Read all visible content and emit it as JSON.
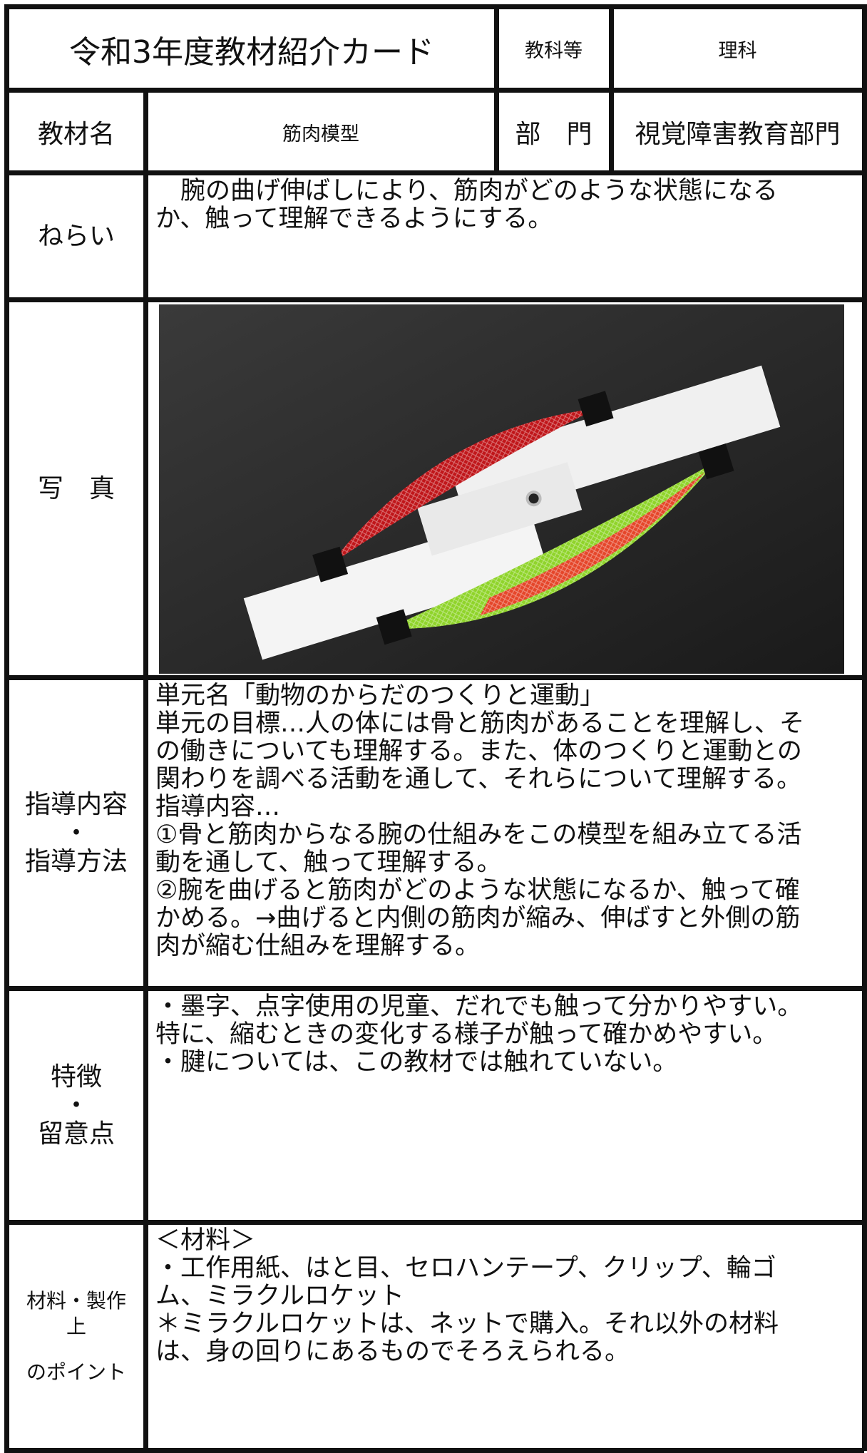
{
  "header": {
    "title": "令和3年度教材紹介カード",
    "subject_label": "教科等",
    "subject": "理科",
    "material_name_label": "教材名",
    "material_name": "筋肉模型",
    "department_label": "部　門",
    "department": "視覚障害教育部門"
  },
  "rows": [
    {
      "label": [
        "ねらい"
      ],
      "text": [
        "　腕の曲げ伸ばしにより、筋肉がどのような状態になる",
        "か、触って理解できるようにする。"
      ]
    },
    {
      "label": [
        "写　真"
      ]
    },
    {
      "label": [
        "指導内容",
        "・",
        "指導方法"
      ],
      "text": [
        "単元名「動物のからだのつくりと運動」",
        "単元の目標…人の体には骨と筋肉があることを理解し、そ",
        "の働きについても理解する。また、体のつくりと運動との",
        "関わりを調べる活動を通して、それらについて理解する。",
        "指導内容…",
        "①骨と筋肉からなる腕の仕組みをこの模型を組み立てる活",
        "動を通して、触って理解する。",
        "②腕を曲げると筋肉がどのような状態になるか、触って確",
        "かめる。→曲げると内側の筋肉が縮み、伸ばすと外側の筋",
        "肉が縮む仕組みを理解する。"
      ]
    },
    {
      "label": [
        "特徴",
        "・",
        "留意点"
      ],
      "text": [
        "・墨字、点字使用の児童、だれでも触って分かりやすい。",
        "特に、縮むときの変化する様子が触って確かめやすい。",
        "・腱については、この教材では触れていない。"
      ]
    },
    {
      "label": [
        "材料・製作",
        "上",
        "",
        "のポイント"
      ],
      "text": [
        "＜材料＞",
        "・工作用紙、はと目、セロハンテープ、クリップ、輪ゴ",
        "ム、ミラクルロケット",
        "＊ミラクルロケットは、ネットで購入。それ以外の材料",
        "は、身の回りにあるものでそろえられる。"
      ]
    }
  ]
}
